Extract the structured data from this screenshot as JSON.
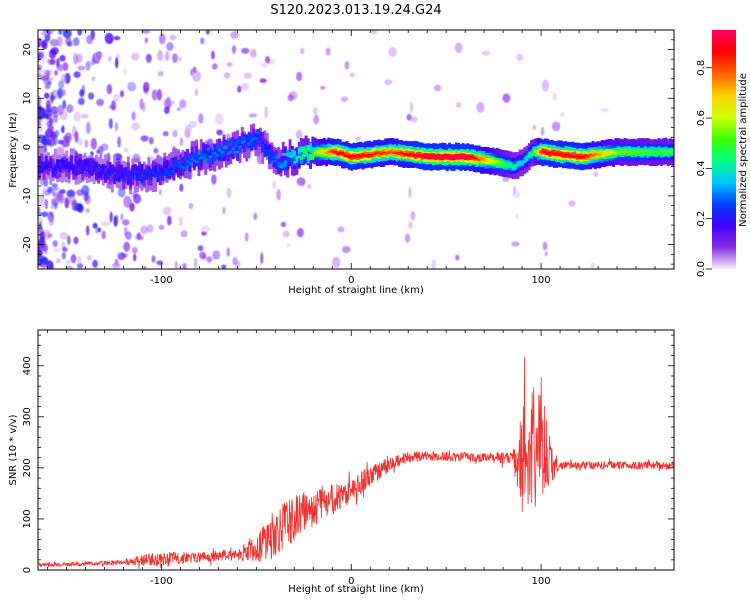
{
  "figure": {
    "title": "S120.2023.013.19.24.G24"
  },
  "chart_data": [
    {
      "type": "heatmap",
      "xlabel": "Height of straight line (km)",
      "ylabel": "Frequency (Hz)",
      "xlim": [
        -165,
        170
      ],
      "ylim": [
        -25,
        24
      ],
      "x_ticks": [
        -100,
        0,
        100
      ],
      "y_ticks": [
        -20,
        -10,
        0,
        10,
        20
      ],
      "grid": false,
      "colorbar": {
        "label": "Normalized spectral amplitude",
        "range": [
          0,
          0.95
        ],
        "ticks": [
          0.0,
          0.2,
          0.4,
          0.6,
          0.8
        ],
        "colormap": [
          "#f5eefc",
          "#8a2be2",
          "#4000ff",
          "#0040ff",
          "#00c8ff",
          "#00ff80",
          "#40ff00",
          "#d0ff00",
          "#ffd000",
          "#ff6000",
          "#ff0000",
          "#ff0060"
        ]
      },
      "ridge": {
        "x": [
          -140,
          -120,
          -100,
          -80,
          -60,
          -50,
          -45,
          -40,
          -30,
          -20,
          -10,
          0,
          20,
          40,
          60,
          75,
          85,
          90,
          95,
          100,
          120,
          140,
          160,
          170
        ],
        "y": [
          -4,
          -6,
          -5,
          -2,
          0,
          2,
          -1,
          -3,
          -2,
          -1,
          -1,
          -2,
          -1,
          -2,
          -2,
          -3,
          -4,
          -3,
          -1,
          -1,
          -2,
          -1,
          -1,
          -1
        ],
        "amplitude": [
          0.2,
          0.22,
          0.25,
          0.3,
          0.3,
          0.28,
          0.25,
          0.3,
          0.4,
          0.55,
          0.85,
          0.9,
          0.8,
          0.95,
          0.95,
          0.6,
          0.4,
          0.35,
          0.45,
          0.9,
          0.9,
          0.55,
          0.5,
          0.5
        ]
      }
    },
    {
      "type": "line",
      "xlabel": "Height of straight line (km)",
      "ylabel": "SNR (10 * v/v)",
      "xlim": [
        -165,
        170
      ],
      "ylim": [
        0,
        470
      ],
      "x_ticks": [
        -100,
        0,
        100
      ],
      "y_ticks": [
        0,
        100,
        200,
        300,
        400
      ],
      "grid": false,
      "series": [
        {
          "color": "#ee3333",
          "envelope": {
            "x": [
              -165,
              -140,
              -120,
              -110,
              -100,
              -80,
              -60,
              -50,
              -40,
              -30,
              -20,
              -10,
              0,
              10,
              20,
              30,
              50,
              70,
              85,
              90,
              95,
              100,
              105,
              110,
              120,
              140,
              160,
              170
            ],
            "y": [
              10,
              12,
              15,
              20,
              22,
              25,
              30,
              45,
              70,
              100,
              125,
              140,
              155,
              185,
              205,
              222,
              223,
              220,
              220,
              210,
              230,
              260,
              210,
              205,
              205,
              205,
              205,
              205
            ],
            "spread": [
              4,
              4,
              5,
              12,
              14,
              10,
              12,
              30,
              50,
              45,
              40,
              30,
              25,
              20,
              15,
              10,
              10,
              10,
              12,
              110,
              130,
              120,
              40,
              8,
              8,
              8,
              8,
              8
            ]
          }
        }
      ]
    }
  ]
}
